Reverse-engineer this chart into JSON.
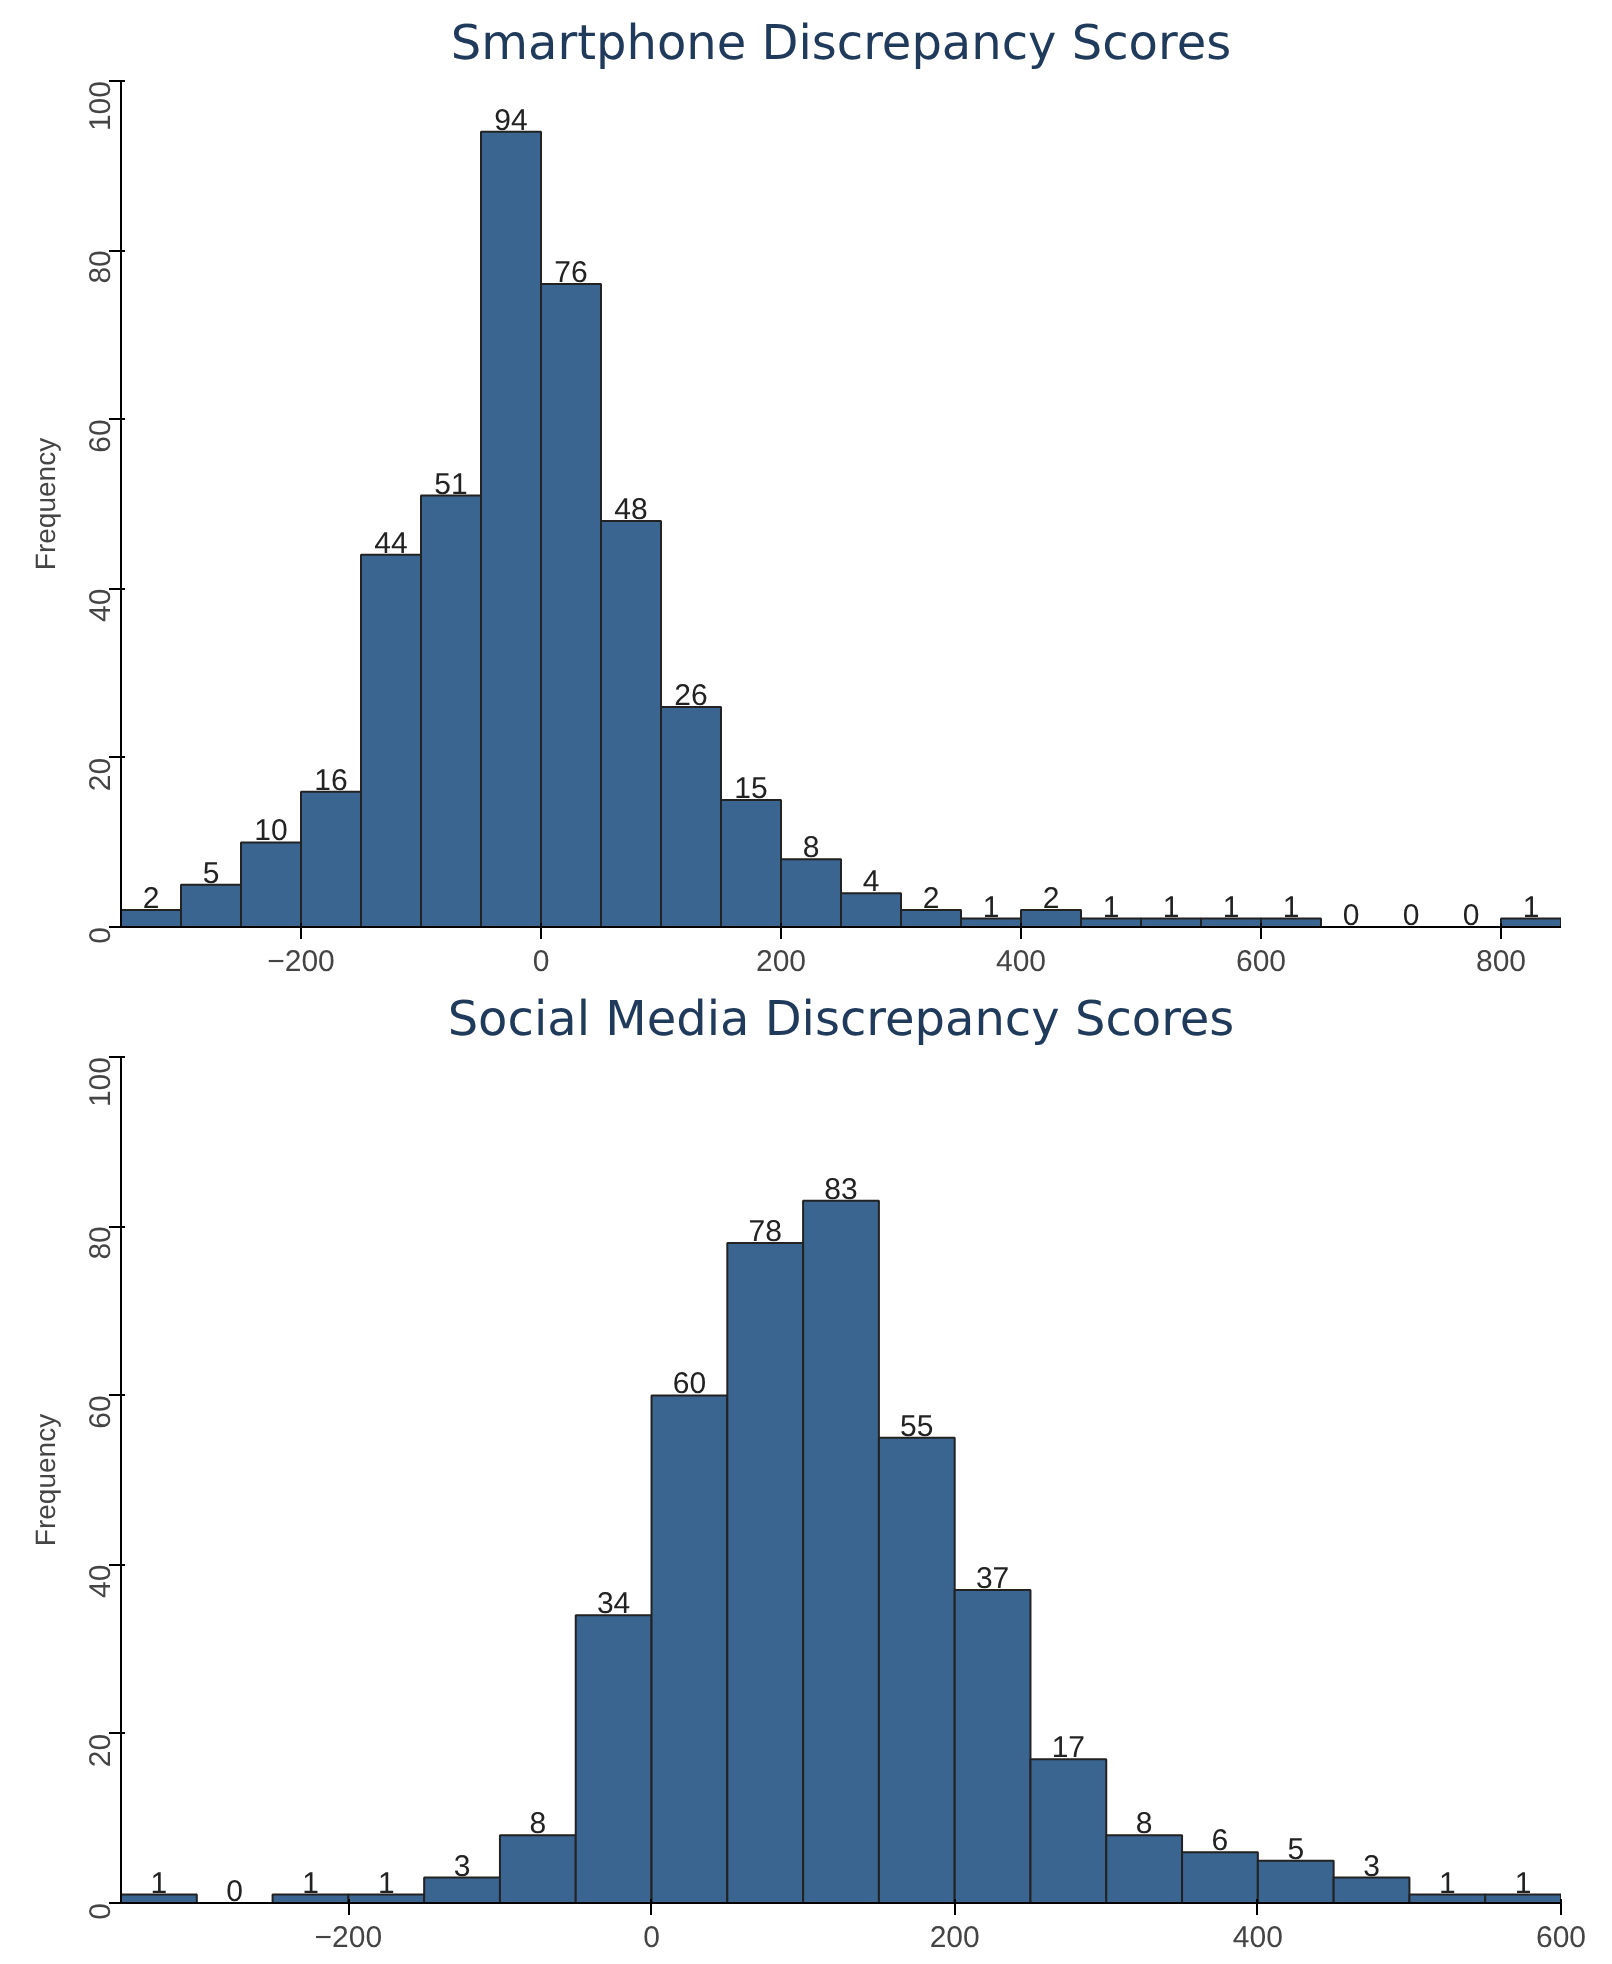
{
  "chart_data": [
    {
      "type": "histogram",
      "title": "Smartphone Discrepancy Scores",
      "ylabel": "Frequency",
      "color": "#3b6591",
      "data_labels": true,
      "bins": [
        -350,
        -300,
        -250,
        -200,
        -150,
        -100,
        -50,
        0,
        50,
        100,
        150,
        200,
        250,
        300,
        350,
        400,
        450,
        500,
        550,
        600,
        650,
        700,
        750,
        800,
        850
      ],
      "values": [
        2,
        5,
        10,
        16,
        44,
        51,
        94,
        76,
        48,
        26,
        15,
        8,
        4,
        2,
        1,
        2,
        1,
        1,
        1,
        1,
        0,
        0,
        0,
        1
      ],
      "xlim": [
        -350,
        850
      ],
      "xticks": [
        -200,
        0,
        200,
        400,
        600,
        800
      ],
      "ylim": [
        0,
        100
      ],
      "yticks": [
        0,
        20,
        40,
        60,
        80,
        100
      ]
    },
    {
      "type": "histogram",
      "title": "Social Media Discrepancy Scores",
      "ylabel": "Frequency",
      "color": "#3b6591",
      "data_labels": true,
      "bins": [
        -350,
        -300,
        -250,
        -200,
        -150,
        -100,
        -50,
        0,
        50,
        100,
        150,
        200,
        250,
        300,
        350,
        400,
        450,
        500,
        550,
        600
      ],
      "values": [
        1,
        0,
        1,
        1,
        3,
        8,
        34,
        60,
        78,
        83,
        55,
        37,
        17,
        8,
        6,
        5,
        3,
        1,
        1
      ],
      "xlim": [
        -350,
        600
      ],
      "xticks": [
        -200,
        0,
        200,
        400,
        600
      ],
      "ylim": [
        0,
        100
      ],
      "yticks": [
        0,
        20,
        40,
        60,
        80,
        100
      ]
    }
  ]
}
